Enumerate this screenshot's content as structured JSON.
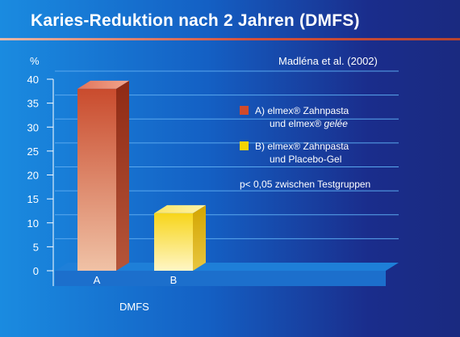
{
  "header": {
    "title": "Karies-Reduktion nach 2 Jahren (DMFS)"
  },
  "citation": "Madléna et al. (2002)",
  "colors": {
    "bar_a_front": "#c94b2d",
    "bar_a_light": "#f0c2a6",
    "bar_b_front": "#f7d51a",
    "bar_b_light": "#fff6c6",
    "grid": "#5aa8ee",
    "legend_a": "#d04a2b",
    "legend_b": "#f5d400"
  },
  "legend": [
    {
      "line1": "A)  elmex® Zahnpasta",
      "line2_prefix": "und elmex® ",
      "line2_italic": "gelée"
    },
    {
      "line1": "B)  elmex® Zahnpasta",
      "line2_prefix": "und Placebo-Gel",
      "line2_italic": ""
    }
  ],
  "note": "p< 0,05 zwischen Testgruppen",
  "chart_data": {
    "type": "bar",
    "title": "Karies-Reduktion nach 2 Jahren (DMFS)",
    "categories": [
      "A",
      "B"
    ],
    "values": [
      38,
      12
    ],
    "xlabel": "DMFS",
    "ylabel": "%",
    "ylim": [
      0,
      40
    ],
    "yticks": [
      "40",
      "35",
      "30",
      "25",
      "20",
      "15",
      "10",
      "5",
      "0"
    ],
    "grid": true
  }
}
